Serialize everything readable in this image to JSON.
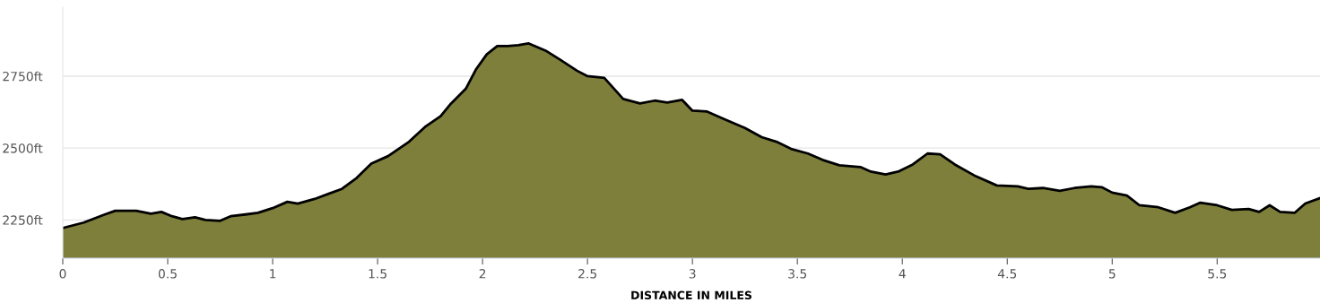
{
  "chart_data": {
    "type": "area",
    "xlabel": "DISTANCE IN MILES",
    "x": [
      0,
      0.1,
      0.2,
      0.25,
      0.35,
      0.42,
      0.47,
      0.52,
      0.57,
      0.63,
      0.68,
      0.75,
      0.8,
      0.87,
      0.93,
      1.0,
      1.07,
      1.12,
      1.2,
      1.27,
      1.33,
      1.4,
      1.47,
      1.55,
      1.65,
      1.73,
      1.8,
      1.85,
      1.92,
      1.97,
      2.02,
      2.07,
      2.12,
      2.17,
      2.22,
      2.3,
      2.37,
      2.45,
      2.5,
      2.58,
      2.67,
      2.75,
      2.82,
      2.88,
      2.95,
      3.0,
      3.07,
      3.15,
      3.25,
      3.33,
      3.4,
      3.47,
      3.55,
      3.62,
      3.7,
      3.8,
      3.85,
      3.92,
      3.98,
      4.05,
      4.12,
      4.18,
      4.25,
      4.35,
      4.45,
      4.55,
      4.6,
      4.67,
      4.75,
      4.82,
      4.9,
      4.95,
      5.0,
      5.07,
      5.13,
      5.22,
      5.3,
      5.37,
      5.42,
      5.5,
      5.57,
      5.65,
      5.7,
      5.75,
      5.8,
      5.87,
      5.92,
      5.99
    ],
    "series": [
      {
        "color": "#7f7f3c",
        "values": [
          2222,
          2241,
          2269,
          2282,
          2282,
          2272,
          2278,
          2263,
          2253,
          2259,
          2250,
          2247,
          2263,
          2269,
          2275,
          2291,
          2313,
          2307,
          2323,
          2342,
          2358,
          2396,
          2446,
          2472,
          2522,
          2576,
          2611,
          2655,
          2706,
          2775,
          2826,
          2855,
          2855,
          2858,
          2864,
          2839,
          2807,
          2769,
          2750,
          2744,
          2671,
          2655,
          2665,
          2658,
          2668,
          2630,
          2627,
          2601,
          2570,
          2538,
          2522,
          2497,
          2481,
          2459,
          2440,
          2434,
          2418,
          2408,
          2418,
          2443,
          2481,
          2478,
          2443,
          2402,
          2370,
          2367,
          2358,
          2361,
          2351,
          2361,
          2367,
          2364,
          2345,
          2335,
          2301,
          2294,
          2275,
          2294,
          2310,
          2301,
          2285,
          2288,
          2278,
          2301,
          2278,
          2275,
          2307,
          2326
        ]
      }
    ],
    "xlim": [
      0,
      5.99
    ],
    "ylim": [
      2117,
      2990
    ],
    "xticks": [
      0,
      0.5,
      1,
      1.5,
      2,
      2.5,
      3,
      3.5,
      4,
      4.5,
      5,
      5.5
    ],
    "yticks": [
      {
        "value": 2250,
        "label": "2250ft"
      },
      {
        "value": 2500,
        "label": "2500ft"
      },
      {
        "value": 2750,
        "label": "2750ft"
      }
    ],
    "grid": "y",
    "legend": false
  }
}
